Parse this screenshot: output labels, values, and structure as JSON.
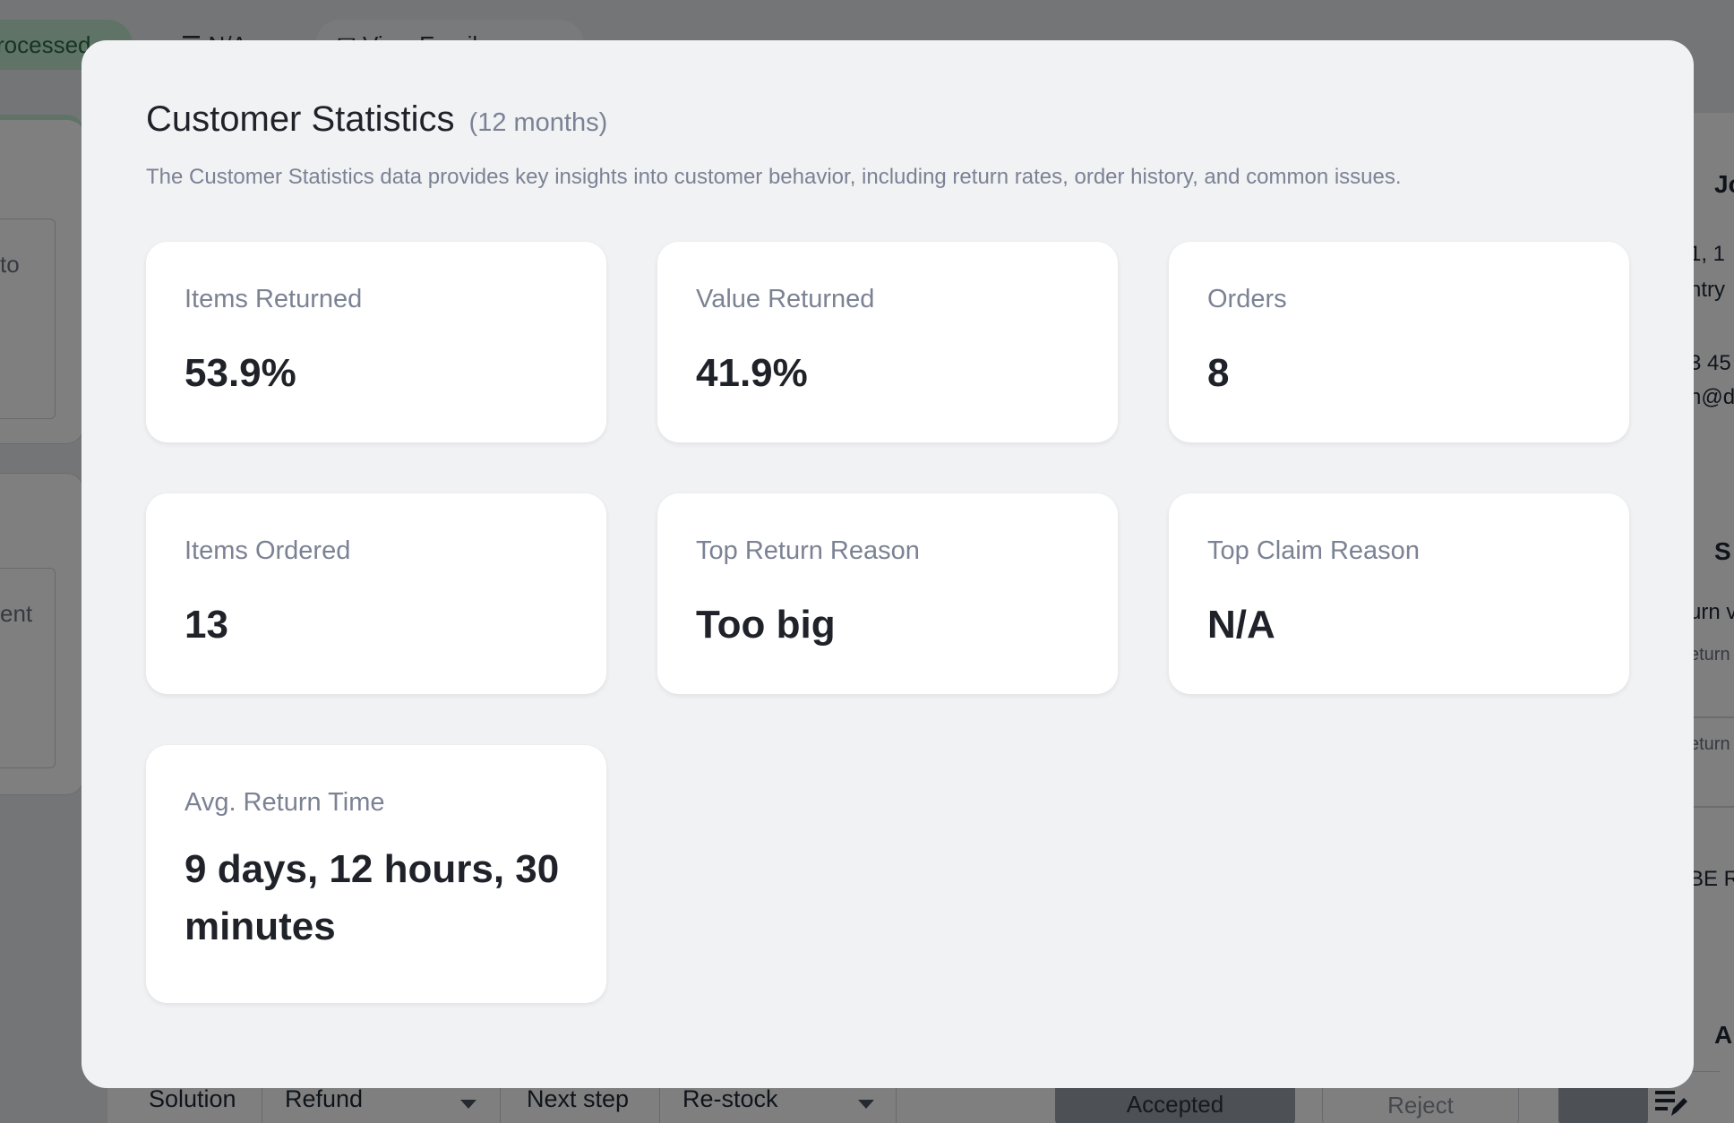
{
  "background": {
    "status_pill": "rocessed",
    "na_pill": "N/A",
    "view_pill": "View Email",
    "left_fragments": [
      "to",
      "ent"
    ],
    "right_fragments": [
      "Jo",
      "1, 1",
      "ntry",
      "3 45",
      "n@d",
      "S",
      "urn v",
      "eturn",
      "eturn",
      "BE R",
      "A"
    ],
    "bottom_bar": {
      "solution_label": "Solution",
      "solution_value": "Refund",
      "next_step_label": "Next step",
      "next_step_value": "Re-stock",
      "accept_label": "Accepted",
      "reject_label": "Reject"
    }
  },
  "modal": {
    "title": "Customer Statistics",
    "period": "(12 months)",
    "description": "The Customer Statistics data provides key insights into customer behavior, including return rates, order history, and common issues.",
    "stats": [
      {
        "label": "Items Returned",
        "value": "53.9%"
      },
      {
        "label": "Value Returned",
        "value": "41.9%"
      },
      {
        "label": "Orders",
        "value": "8"
      },
      {
        "label": "Items Ordered",
        "value": "13"
      },
      {
        "label": "Top Return Reason",
        "value": "Too big"
      },
      {
        "label": "Top Claim Reason",
        "value": "N/A"
      },
      {
        "label": "Avg. Return Time",
        "value": "9 days, 12 hours, 30 minutes"
      }
    ]
  }
}
